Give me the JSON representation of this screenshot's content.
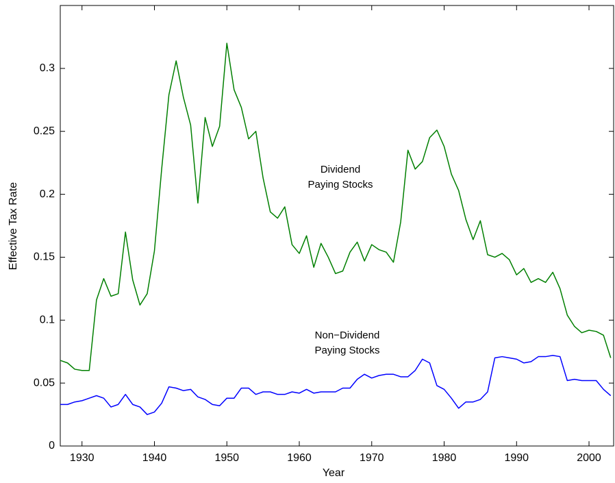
{
  "chart_data": {
    "type": "line",
    "xlabel": "Year",
    "ylabel": "Effective Tax Rate",
    "x": [
      1927,
      1928,
      1929,
      1930,
      1931,
      1932,
      1933,
      1934,
      1935,
      1936,
      1937,
      1938,
      1939,
      1940,
      1941,
      1942,
      1943,
      1944,
      1945,
      1946,
      1947,
      1948,
      1949,
      1950,
      1951,
      1952,
      1953,
      1954,
      1955,
      1956,
      1957,
      1958,
      1959,
      1960,
      1961,
      1962,
      1963,
      1964,
      1965,
      1966,
      1967,
      1968,
      1969,
      1970,
      1971,
      1972,
      1973,
      1974,
      1975,
      1976,
      1977,
      1978,
      1979,
      1980,
      1981,
      1982,
      1983,
      1984,
      1985,
      1986,
      1987,
      1988,
      1989,
      1990,
      1991,
      1992,
      1993,
      1994,
      1995,
      1996,
      1997,
      1998,
      1999,
      2000,
      2001,
      2002,
      2003
    ],
    "series": [
      {
        "name": "Dividend Paying Stocks",
        "color": "#007f00",
        "values": [
          0.068,
          0.066,
          0.061,
          0.06,
          0.06,
          0.116,
          0.133,
          0.119,
          0.121,
          0.17,
          0.132,
          0.112,
          0.121,
          0.155,
          0.22,
          0.279,
          0.306,
          0.277,
          0.255,
          0.193,
          0.261,
          0.238,
          0.254,
          0.32,
          0.283,
          0.269,
          0.244,
          0.25,
          0.213,
          0.186,
          0.181,
          0.19,
          0.16,
          0.153,
          0.167,
          0.142,
          0.161,
          0.15,
          0.137,
          0.139,
          0.154,
          0.162,
          0.147,
          0.16,
          0.156,
          0.154,
          0.146,
          0.178,
          0.235,
          0.22,
          0.226,
          0.245,
          0.251,
          0.238,
          0.216,
          0.203,
          0.18,
          0.164,
          0.179,
          0.152,
          0.15,
          0.153,
          0.148,
          0.136,
          0.141,
          0.13,
          0.133,
          0.13,
          0.138,
          0.125,
          0.104,
          0.095,
          0.09,
          0.092,
          0.091,
          0.088,
          0.07
        ]
      },
      {
        "name": "Non-Dividend Paying Stocks",
        "color": "#0000ff",
        "values": [
          0.033,
          0.033,
          0.035,
          0.036,
          0.038,
          0.04,
          0.038,
          0.031,
          0.033,
          0.041,
          0.033,
          0.031,
          0.025,
          0.027,
          0.034,
          0.047,
          0.046,
          0.044,
          0.045,
          0.039,
          0.037,
          0.033,
          0.032,
          0.038,
          0.038,
          0.046,
          0.046,
          0.041,
          0.043,
          0.043,
          0.041,
          0.041,
          0.043,
          0.042,
          0.045,
          0.042,
          0.043,
          0.043,
          0.043,
          0.046,
          0.046,
          0.053,
          0.057,
          0.054,
          0.056,
          0.057,
          0.057,
          0.055,
          0.055,
          0.06,
          0.069,
          0.066,
          0.048,
          0.045,
          0.038,
          0.03,
          0.035,
          0.035,
          0.037,
          0.043,
          0.07,
          0.071,
          0.07,
          0.069,
          0.066,
          0.067,
          0.071,
          0.071,
          0.072,
          0.071,
          0.052,
          0.053,
          0.052,
          0.052,
          0.052,
          0.045,
          0.04
        ]
      }
    ],
    "annotations": [
      {
        "lines": [
          "Dividend",
          "Paying Stocks"
        ]
      },
      {
        "lines": [
          "Non−Dividend",
          "Paying Stocks"
        ]
      }
    ],
    "xlim": [
      1927,
      2003.4
    ],
    "ylim": [
      0,
      0.35
    ],
    "xticks": [
      1930,
      1940,
      1950,
      1960,
      1970,
      1980,
      1990,
      2000
    ],
    "yticks": [
      0,
      0.05,
      0.1,
      0.15,
      0.2,
      0.25,
      0.3
    ],
    "grid": false
  }
}
